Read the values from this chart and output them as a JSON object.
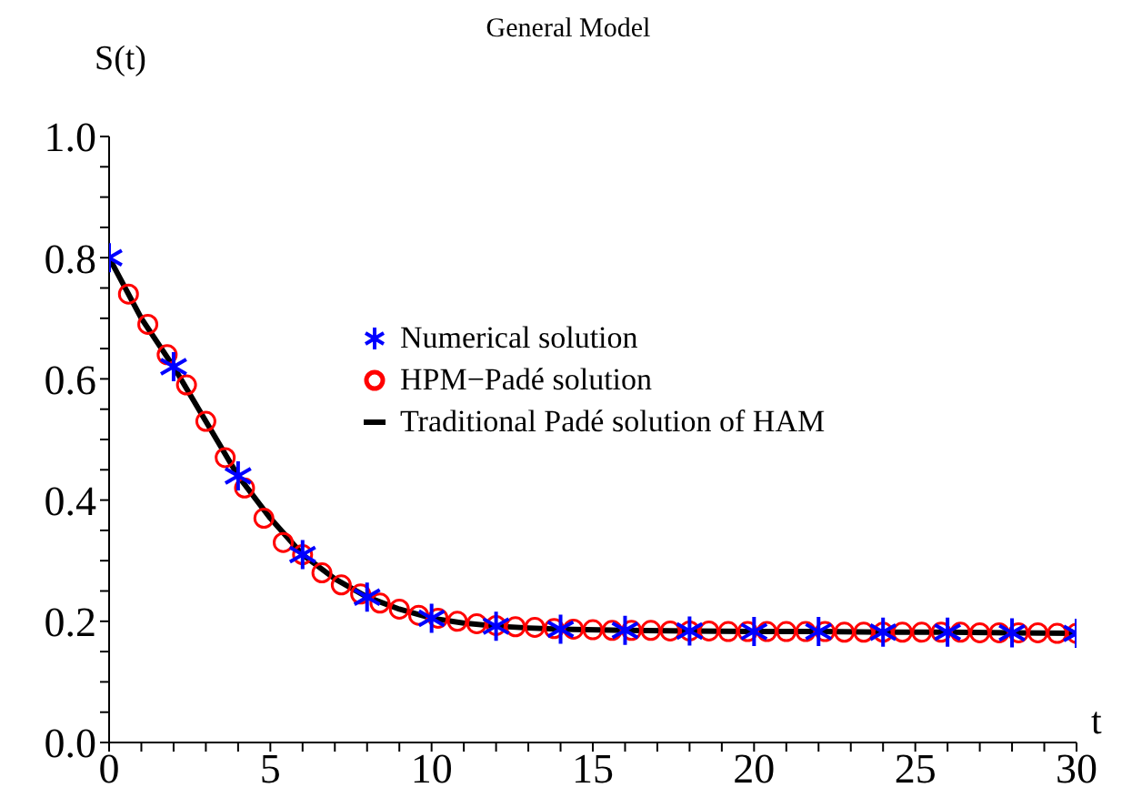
{
  "chart_data": {
    "type": "scatter",
    "title": "General Model",
    "xlabel": "t",
    "ylabel": "S(t)",
    "xlim": [
      0,
      30
    ],
    "ylim": [
      0,
      1.0
    ],
    "xticks": [
      0,
      {
        "value": 1,
        "label": null
      },
      {
        "value": 2,
        "label": null
      },
      {
        "value": 3,
        "label": null
      },
      {
        "value": 4,
        "label": null
      },
      5,
      {
        "value": 6,
        "label": null
      },
      {
        "value": 7,
        "label": null
      },
      {
        "value": 8,
        "label": null
      },
      {
        "value": 9,
        "label": null
      },
      10,
      {
        "value": 11,
        "label": null
      },
      {
        "value": 12,
        "label": null
      },
      {
        "value": 13,
        "label": null
      },
      {
        "value": 14,
        "label": null
      },
      15,
      {
        "value": 16,
        "label": null
      },
      {
        "value": 17,
        "label": null
      },
      {
        "value": 18,
        "label": null
      },
      {
        "value": 19,
        "label": null
      },
      20,
      {
        "value": 21,
        "label": null
      },
      {
        "value": 22,
        "label": null
      },
      {
        "value": 23,
        "label": null
      },
      {
        "value": 24,
        "label": null
      },
      25,
      {
        "value": 26,
        "label": null
      },
      {
        "value": 27,
        "label": null
      },
      {
        "value": 28,
        "label": null
      },
      {
        "value": 29,
        "label": null
      },
      30
    ],
    "yticks": [
      {
        "value": 0,
        "label": "0.0"
      },
      {
        "value": 0.05,
        "label": null
      },
      {
        "value": 0.1,
        "label": null
      },
      {
        "value": 0.15,
        "label": null
      },
      0.2,
      {
        "value": 0.25,
        "label": null
      },
      {
        "value": 0.3,
        "label": null
      },
      {
        "value": 0.35,
        "label": null
      },
      0.4,
      {
        "value": 0.45,
        "label": null
      },
      {
        "value": 0.5,
        "label": null
      },
      {
        "value": 0.55,
        "label": null
      },
      0.6,
      {
        "value": 0.65,
        "label": null
      },
      {
        "value": 0.7,
        "label": null
      },
      {
        "value": 0.75,
        "label": null
      },
      0.8,
      {
        "value": 0.85,
        "label": null
      },
      {
        "value": 0.9,
        "label": null
      },
      {
        "value": 0.95,
        "label": null
      },
      {
        "value": 1.0,
        "label": "1.0"
      }
    ],
    "grid": false,
    "legend": "right",
    "series": [
      {
        "name": "Traditional Padé solution of HAM",
        "type": "line",
        "color": "#000000",
        "x": [
          0,
          1,
          2,
          3,
          4,
          5,
          6,
          7,
          8,
          9,
          10,
          11,
          12,
          13,
          14,
          16,
          18,
          20,
          22,
          24,
          26,
          28,
          30
        ],
        "values": [
          0.8,
          0.7,
          0.62,
          0.53,
          0.44,
          0.37,
          0.31,
          0.27,
          0.24,
          0.22,
          0.205,
          0.197,
          0.192,
          0.189,
          0.187,
          0.185,
          0.184,
          0.183,
          0.183,
          0.182,
          0.182,
          0.181,
          0.18
        ]
      },
      {
        "name": "HPM−Padé solution",
        "marker": "circle",
        "color": "#ff0000",
        "x": [
          0.6,
          1.2,
          1.8,
          2.4,
          3.0,
          3.6,
          4.2,
          4.8,
          5.4,
          6.0,
          6.6,
          7.2,
          7.8,
          8.4,
          9.0,
          9.6,
          10.2,
          10.8,
          11.4,
          12.0,
          12.6,
          13.2,
          13.8,
          14.4,
          15.0,
          15.6,
          16.2,
          16.8,
          17.4,
          18.0,
          18.6,
          19.2,
          19.8,
          20.4,
          21.0,
          21.6,
          22.2,
          22.8,
          23.4,
          24.0,
          24.6,
          25.2,
          25.8,
          26.4,
          27.0,
          27.6,
          28.2,
          28.8,
          29.4,
          30.0
        ],
        "values": [
          0.74,
          0.69,
          0.64,
          0.59,
          0.53,
          0.47,
          0.42,
          0.37,
          0.33,
          0.31,
          0.28,
          0.26,
          0.245,
          0.23,
          0.22,
          0.21,
          0.205,
          0.2,
          0.196,
          0.193,
          0.191,
          0.19,
          0.188,
          0.187,
          0.186,
          0.185,
          0.185,
          0.185,
          0.184,
          0.184,
          0.184,
          0.183,
          0.183,
          0.183,
          0.183,
          0.183,
          0.183,
          0.182,
          0.182,
          0.182,
          0.182,
          0.182,
          0.182,
          0.182,
          0.181,
          0.181,
          0.181,
          0.181,
          0.18,
          0.18
        ]
      },
      {
        "name": "Numerical solution",
        "marker": "cross",
        "color": "#0000ff",
        "x": [
          0,
          2,
          4,
          6,
          8,
          10,
          12,
          14,
          16,
          18,
          20,
          22,
          24,
          26,
          28,
          30
        ],
        "values": [
          0.8,
          0.62,
          0.44,
          0.31,
          0.24,
          0.205,
          0.192,
          0.187,
          0.185,
          0.184,
          0.183,
          0.183,
          0.182,
          0.182,
          0.181,
          0.18
        ]
      }
    ]
  }
}
